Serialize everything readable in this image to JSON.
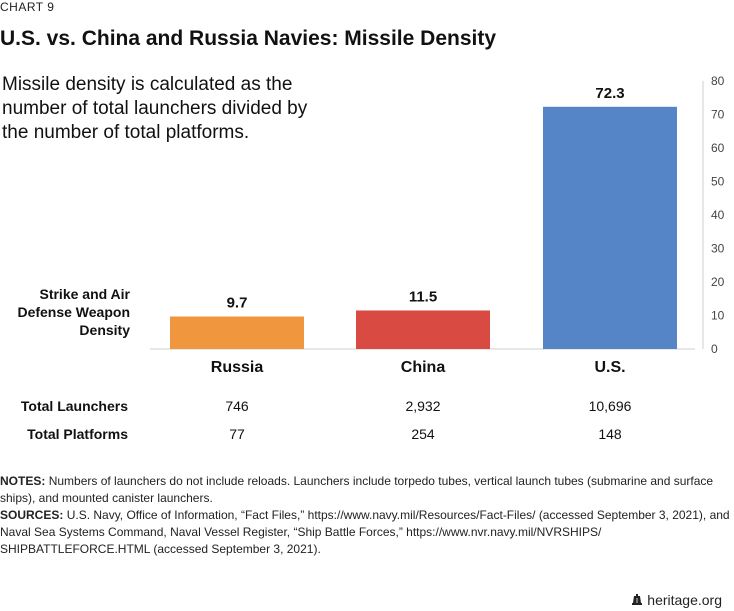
{
  "header": {
    "chart_number": "CHART 9",
    "title": "U.S. vs. China and Russia Navies: Missile Density",
    "description": "Missile density is calculated as the number of total launchers divided by the number of total platforms."
  },
  "chart_data": {
    "type": "bar",
    "categories": [
      "Russia",
      "China",
      "U.S."
    ],
    "series": [
      {
        "name": "Strike and Air Defense Weapon Density",
        "values": [
          9.7,
          11.5,
          72.3
        ],
        "colors": [
          "#F0963E",
          "#D94A42",
          "#5585C6"
        ]
      }
    ],
    "data_labels": [
      "9.7",
      "11.5",
      "72.3"
    ],
    "y_axis": {
      "position": "right",
      "ylim": [
        0,
        80
      ],
      "ticks": [
        0,
        10,
        20,
        30,
        40,
        50,
        60,
        70,
        80
      ]
    },
    "grid": false
  },
  "table": {
    "rows": [
      {
        "label": "Total Launchers",
        "values": [
          "746",
          "2,932",
          "10,696"
        ]
      },
      {
        "label": "Total Platforms",
        "values": [
          "77",
          "254",
          "148"
        ]
      }
    ]
  },
  "notes": {
    "notes_label": "NOTES:",
    "notes_text": "Numbers of launchers do not include reloads. Launchers include torpedo tubes, vertical launch tubes (submarine and surface ships), and mounted canister launchers.",
    "sources_label": "SOURCES:",
    "sources_text": "U.S. Navy, Office of Information, “Fact Files,” https://www.navy.mil/Resources/Fact-Files/ (accessed September 3, 2021), and Naval Sea Systems Command, Naval Vessel Register, “Ship Battle Forces,” https://www.nvr.navy.mil/NVRSHIPS/ SHIPBATTLEFORCE.HTML (accessed September 3, 2021)."
  },
  "footer": {
    "site": "heritage.org",
    "icon": "liberty-bell-icon"
  }
}
